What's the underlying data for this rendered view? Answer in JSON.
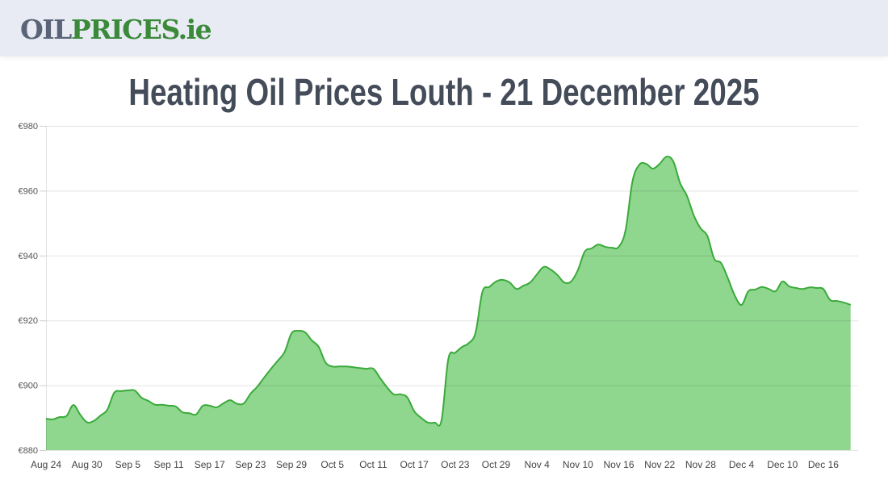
{
  "header": {
    "logo": {
      "part1": "OIL",
      "part2": "PRICES",
      "part3": ".ie"
    }
  },
  "page_title": "Heating Oil Prices Louth - 21 December 2025",
  "colors": {
    "line": "#3aaa3a",
    "fill": "#8fd68f",
    "grid": "#e2e2e2",
    "title": "#444c5a",
    "logo_grey": "#5a6478",
    "logo_green": "#3a8a3a",
    "header_bg": "#e8ebf3"
  },
  "chart_data": {
    "type": "area",
    "title": "Heating Oil Prices Louth - 21 December 2025",
    "xlabel": "",
    "ylabel": "",
    "ylim": [
      880,
      980
    ],
    "yticks": [
      "€880",
      "€900",
      "€920",
      "€940",
      "€960",
      "€980"
    ],
    "ytick_values": [
      880,
      900,
      920,
      940,
      960,
      980
    ],
    "xticks": [
      "Aug 24",
      "Aug 30",
      "Sep 5",
      "Sep 11",
      "Sep 17",
      "Sep 23",
      "Sep 29",
      "Oct 5",
      "Oct 11",
      "Oct 17",
      "Oct 23",
      "Oct 29",
      "Nov 4",
      "Nov 10",
      "Nov 16",
      "Nov 22",
      "Nov 28",
      "Dec 4",
      "Dec 10",
      "Dec 16"
    ],
    "grid": true,
    "legend": "none",
    "x_start": "Aug 24",
    "x_end": "Dec 21",
    "x_step_days": 1,
    "series": [
      {
        "name": "Heating Oil Price (€)",
        "values": [
          889.7,
          889.5,
          890.2,
          890.5,
          893.9,
          891.0,
          888.6,
          889.0,
          890.7,
          892.5,
          897.7,
          898.2,
          898.4,
          898.4,
          896.2,
          895.2,
          894.0,
          894.0,
          893.7,
          893.5,
          891.7,
          891.4,
          891.0,
          893.7,
          893.7,
          893.2,
          894.4,
          895.4,
          894.3,
          894.4,
          897.4,
          899.6,
          902.4,
          905.1,
          907.6,
          910.3,
          916.0,
          916.8,
          916.3,
          913.8,
          911.8,
          907.0,
          905.8,
          905.8,
          905.8,
          905.6,
          905.3,
          905.1,
          905.1,
          902.2,
          899.4,
          897.2,
          897.2,
          896.2,
          892.0,
          890.0,
          888.5,
          888.5,
          889.2,
          908.1,
          910.0,
          911.8,
          913.0,
          916.3,
          928.8,
          930.3,
          932.0,
          932.5,
          931.7,
          929.7,
          930.7,
          931.7,
          934.2,
          936.5,
          935.7,
          934.0,
          931.7,
          932.0,
          935.5,
          941.2,
          942.2,
          943.4,
          942.7,
          942.4,
          942.7,
          947.9,
          962.8,
          968.0,
          968.3,
          966.8,
          968.3,
          970.5,
          969.0,
          962.3,
          958.4,
          952.4,
          948.4,
          946.0,
          939.0,
          937.7,
          933.0,
          927.7,
          924.8,
          929.0,
          929.5,
          930.3,
          929.7,
          929.0,
          932.0,
          930.5,
          930.0,
          929.7,
          930.2,
          930.0,
          929.7,
          926.3,
          926.0,
          925.5,
          924.8
        ]
      }
    ]
  }
}
